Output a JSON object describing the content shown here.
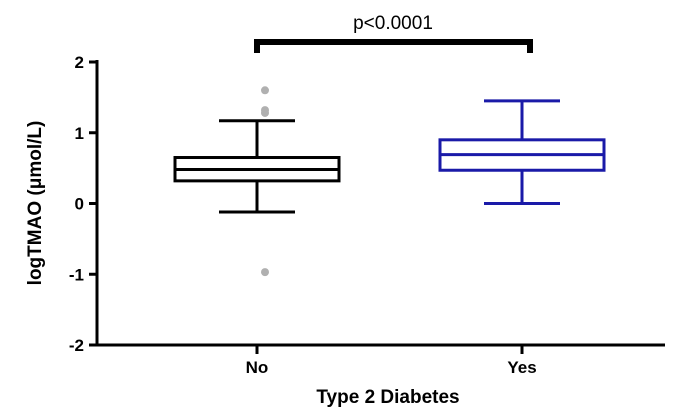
{
  "chart_data": {
    "type": "box",
    "xlabel": "Type 2 Diabetes",
    "ylabel": "logTMAO (μmol/L)",
    "ylim": [
      -2,
      2
    ],
    "yticks": [
      2,
      1,
      0,
      -1,
      -2
    ],
    "ytick_labels": [
      "2",
      "1",
      "0",
      "-1",
      "-2"
    ],
    "categories": [
      "No",
      "Yes"
    ],
    "series": [
      {
        "category": "No",
        "color": "#000000",
        "whisker_low": -0.12,
        "q1": 0.32,
        "median": 0.48,
        "q3": 0.65,
        "whisker_high": 1.17,
        "outliers": [
          1.6,
          1.32,
          1.28,
          -0.97
        ],
        "outlier_color": "#b0b0b0"
      },
      {
        "category": "Yes",
        "color": "#1a1aa8",
        "whisker_low": 0.0,
        "q1": 0.47,
        "median": 0.69,
        "q3": 0.9,
        "whisker_high": 1.45,
        "outliers": []
      }
    ],
    "annotation": {
      "text": "p<0.0001",
      "between": [
        "No",
        "Yes"
      ]
    }
  }
}
